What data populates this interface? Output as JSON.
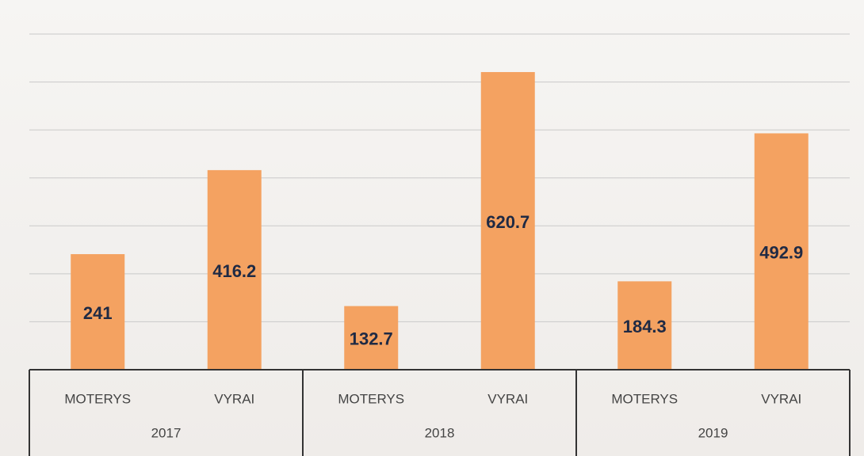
{
  "chart_data": {
    "type": "bar",
    "categories": [
      "MOTERYS",
      "VYRAI",
      "MOTERYS",
      "VYRAI",
      "MOTERYS",
      "VYRAI"
    ],
    "groups": [
      "2017",
      "2018",
      "2019"
    ],
    "values": [
      241,
      416.2,
      132.7,
      620.7,
      184.3,
      492.9
    ],
    "color": "#f4a261",
    "ylim": [
      0,
      700
    ],
    "yticks": [
      0,
      100,
      200,
      300,
      400,
      500,
      600,
      700
    ],
    "grid": true
  }
}
